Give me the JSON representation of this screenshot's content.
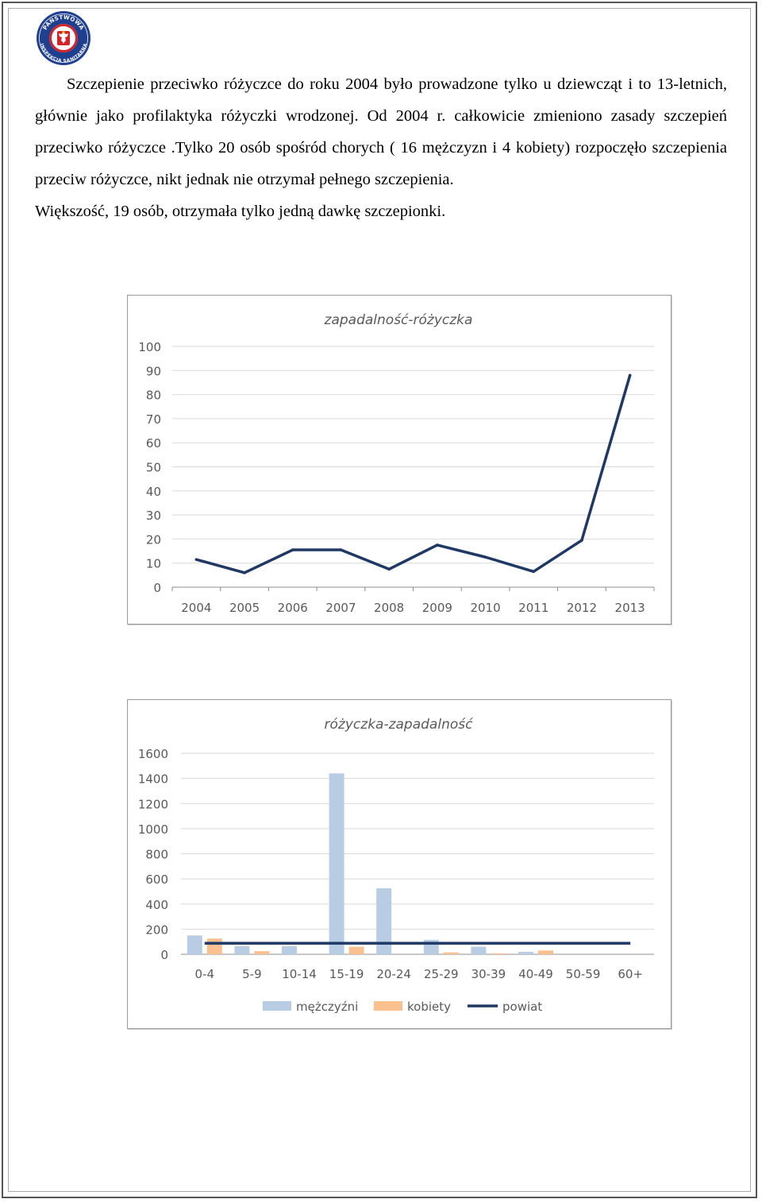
{
  "logo": {
    "top_text": "PAŃSTWOWA",
    "bottom_text": "INSPEKCJA SANITARNA",
    "icon": "eagle-emblem-icon"
  },
  "text": {
    "paragraph1": "Szczepienie przeciwko różyczce do roku 2004 było prowadzone tylko u dziewcząt i to 13-letnich, głównie jako profilaktyka różyczki wrodzonej. Od 2004 r. całkowicie zmieniono zasady szczepień przeciwko różyczce .Tylko 20 osób spośród chorych ( 16 mężczyzn i 4 kobiety) rozpoczęło szczepienia przeciw różyczce, nikt jednak nie otrzymał pełnego szczepienia.",
    "paragraph2": "Większość, 19 osób, otrzymała tylko jedną dawkę szczepionki."
  },
  "chart_data": [
    {
      "type": "line",
      "title": "zapadalność-różyczka",
      "x": [
        "2004",
        "2005",
        "2006",
        "2007",
        "2008",
        "2009",
        "2010",
        "2011",
        "2012",
        "2013"
      ],
      "series": [
        {
          "name": "zapadalność",
          "values": [
            11.5,
            6,
            15.5,
            15.5,
            7.5,
            17.5,
            12.5,
            6.5,
            19.5,
            88
          ],
          "color": "#1f3864"
        }
      ],
      "yticks": [
        "0",
        "10",
        "20",
        "30",
        "40",
        "50",
        "60",
        "70",
        "80",
        "90",
        "100"
      ],
      "ylim": [
        0,
        100
      ],
      "grid": true
    },
    {
      "type": "bar",
      "title": "różyczka-zapadalność",
      "categories": [
        "0-4",
        "5-9",
        "10-14",
        "15-19",
        "20-24",
        "25-29",
        "30-39",
        "40-49",
        "50-59",
        "60+"
      ],
      "series": [
        {
          "name": "mężczyźni",
          "values": [
            150,
            65,
            65,
            1440,
            525,
            115,
            60,
            20,
            0,
            0
          ],
          "color": "#b8cce4"
        },
        {
          "name": "kobiety",
          "values": [
            125,
            25,
            0,
            60,
            0,
            15,
            8,
            30,
            0,
            0
          ],
          "color": "#fac090"
        },
        {
          "name": "powiat",
          "values": [
            88,
            88,
            88,
            88,
            88,
            88,
            88,
            88,
            88,
            88
          ],
          "color": "#1f3864",
          "render": "line"
        }
      ],
      "yticks": [
        "0",
        "200",
        "400",
        "600",
        "800",
        "1000",
        "1200",
        "1400",
        "1600"
      ],
      "ylim": [
        0,
        1600
      ],
      "legend": "bottom",
      "grid": true
    }
  ]
}
